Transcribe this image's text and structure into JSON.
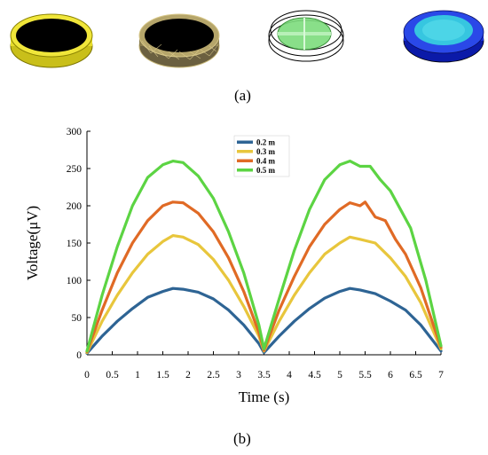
{
  "panels": {
    "a_label": "(a)",
    "b_label": "(b)"
  },
  "illustrations": [
    {
      "name": "black-disc-yellow-ring",
      "colors": [
        "#e6dc2a",
        "#000000"
      ]
    },
    {
      "name": "mesh-disc",
      "colors": [
        "#000000",
        "#c8b878"
      ]
    },
    {
      "name": "green-transparent-disc",
      "colors": [
        "#7ddc7d",
        "#000000"
      ]
    },
    {
      "name": "blue-contour-disc",
      "colors": [
        "#1a2fd6",
        "#36c6e0"
      ]
    }
  ],
  "chart_data": {
    "type": "line",
    "title": "",
    "xlabel": "Time (s)",
    "ylabel": "Voltage(μV)",
    "xlim": [
      0,
      7
    ],
    "ylim": [
      0,
      300
    ],
    "xticks": [
      "0",
      "0.5",
      "1",
      "1.5",
      "2",
      "2.5",
      "3",
      "3.5",
      "4",
      "4.5",
      "5",
      "5.5",
      "6",
      "6.5",
      "7"
    ],
    "yticks": [
      "0",
      "50",
      "100",
      "150",
      "200",
      "250",
      "300"
    ],
    "grid": false,
    "legend_position": "top-center",
    "series": [
      {
        "name": "0.2 m",
        "color": "#2e6494",
        "x": [
          0,
          0.3,
          0.6,
          0.9,
          1.2,
          1.5,
          1.7,
          1.9,
          2.2,
          2.5,
          2.8,
          3.1,
          3.4,
          3.5,
          3.8,
          4.1,
          4.4,
          4.7,
          5.0,
          5.2,
          5.4,
          5.7,
          6.0,
          6.3,
          6.6,
          7.0
        ],
        "y": [
          2,
          25,
          45,
          62,
          77,
          85,
          89,
          88,
          84,
          75,
          60,
          40,
          15,
          3,
          25,
          45,
          62,
          76,
          85,
          89,
          87,
          82,
          72,
          60,
          40,
          5
        ]
      },
      {
        "name": "0.3 m",
        "color": "#e8c63c",
        "x": [
          0,
          0.3,
          0.6,
          0.9,
          1.2,
          1.5,
          1.7,
          1.9,
          2.2,
          2.5,
          2.8,
          3.1,
          3.4,
          3.5,
          3.8,
          4.1,
          4.4,
          4.7,
          5.0,
          5.2,
          5.4,
          5.7,
          6.0,
          6.3,
          6.6,
          7.0
        ],
        "y": [
          3,
          45,
          80,
          110,
          135,
          152,
          160,
          158,
          148,
          128,
          100,
          65,
          25,
          5,
          45,
          80,
          110,
          135,
          150,
          158,
          155,
          150,
          130,
          105,
          70,
          8
        ]
      },
      {
        "name": "0.4 m",
        "color": "#e06a25",
        "x": [
          0,
          0.3,
          0.6,
          0.9,
          1.2,
          1.5,
          1.7,
          1.9,
          2.2,
          2.5,
          2.8,
          3.1,
          3.4,
          3.5,
          3.8,
          4.1,
          4.4,
          4.7,
          5.0,
          5.2,
          5.4,
          5.5,
          5.7,
          5.9,
          6.1,
          6.3,
          6.6,
          7.0
        ],
        "y": [
          4,
          60,
          110,
          150,
          180,
          200,
          205,
          204,
          190,
          165,
          130,
          85,
          30,
          6,
          60,
          105,
          145,
          175,
          195,
          204,
          200,
          205,
          185,
          180,
          155,
          135,
          90,
          10
        ]
      },
      {
        "name": "0.5 m",
        "color": "#5cd443",
        "x": [
          0,
          0.3,
          0.6,
          0.9,
          1.2,
          1.5,
          1.7,
          1.9,
          2.2,
          2.5,
          2.8,
          3.1,
          3.4,
          3.5,
          3.8,
          4.1,
          4.4,
          4.7,
          5.0,
          5.2,
          5.4,
          5.6,
          5.8,
          6.0,
          6.2,
          6.4,
          6.7,
          7.0
        ],
        "y": [
          5,
          80,
          145,
          200,
          238,
          255,
          260,
          258,
          240,
          210,
          165,
          110,
          40,
          8,
          75,
          140,
          195,
          235,
          255,
          260,
          253,
          253,
          235,
          220,
          195,
          170,
          100,
          12
        ]
      }
    ]
  }
}
